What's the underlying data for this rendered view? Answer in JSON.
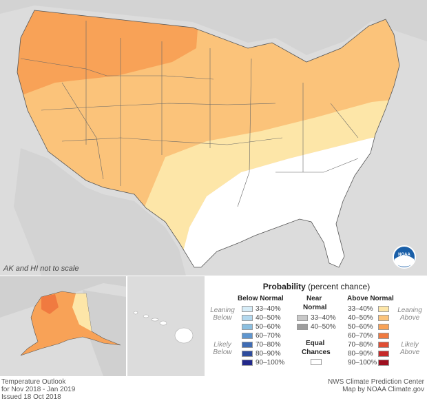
{
  "map": {
    "scale_note": "AK and HI not to scale",
    "agency_logo_text": "NOAA"
  },
  "legend": {
    "title_bold": "Probability",
    "title_rest": "(percent chance)",
    "below_header": "Below Normal",
    "near_header_1": "Near",
    "near_header_2": "Normal",
    "above_header": "Above Normal",
    "leaning_left_1": "Leaning",
    "leaning_left_2": "Below",
    "likely_left_1": "Likely",
    "likely_left_2": "Below",
    "leaning_right_1": "Leaning",
    "leaning_right_2": "Above",
    "likely_right_1": "Likely",
    "likely_right_2": "Above",
    "equal_1": "Equal",
    "equal_2": "Chances",
    "below": [
      {
        "label": "33–40%",
        "color": "#d6ecf7"
      },
      {
        "label": "40–50%",
        "color": "#b3d8ee"
      },
      {
        "label": "50–60%",
        "color": "#8bbfe0"
      },
      {
        "label": "60–70%",
        "color": "#5f96cf"
      },
      {
        "label": "70–80%",
        "color": "#3f6cb4"
      },
      {
        "label": "80–90%",
        "color": "#2e4c9d"
      },
      {
        "label": "90–100%",
        "color": "#22288a"
      }
    ],
    "near": [
      {
        "label": "33–40%",
        "color": "#c8c8c8"
      },
      {
        "label": "40–50%",
        "color": "#9d9d9d"
      }
    ],
    "above": [
      {
        "label": "33–40%",
        "color": "#fde6a8"
      },
      {
        "label": "40–50%",
        "color": "#fbc37a"
      },
      {
        "label": "50–60%",
        "color": "#f8a257"
      },
      {
        "label": "60–70%",
        "color": "#f07a40"
      },
      {
        "label": "70–80%",
        "color": "#e04e34"
      },
      {
        "label": "80–90%",
        "color": "#c62a2a"
      },
      {
        "label": "90–100%",
        "color": "#9e0f1f"
      }
    ]
  },
  "footer": {
    "left_1": "Temperature Outlook",
    "left_2": "for Nov 2018 - Jan 2019",
    "left_3": "Issued 18 Oct 2018",
    "right_1": "NWS Climate Prediction Center",
    "right_2": "Map by NOAA Climate.gov"
  }
}
